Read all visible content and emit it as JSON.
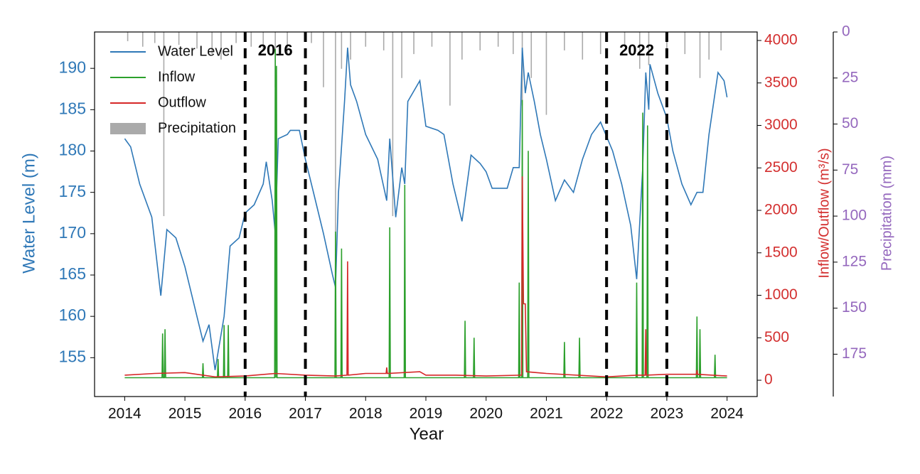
{
  "chart_data": {
    "type": "line",
    "xlabel": "Year",
    "ylabel": "Water Level (m)",
    "y2label": "Inflow/Outflow (m³/s)",
    "y3label": "Precipitation (mm)",
    "xlim": [
      2013.5,
      2024.5
    ],
    "xticks": [
      2014,
      2015,
      2016,
      2017,
      2018,
      2019,
      2020,
      2021,
      2022,
      2023,
      2024
    ],
    "ylim": [
      150.3,
      194.4
    ],
    "yticks": [
      155,
      160,
      165,
      170,
      175,
      180,
      185,
      190
    ],
    "y2lim": [
      -192,
      4100
    ],
    "y2ticks": [
      0,
      500,
      1000,
      1500,
      2000,
      2500,
      3000,
      3500,
      4000
    ],
    "y3lim": [
      0,
      198
    ],
    "y3_inverted": true,
    "y3ticks": [
      0,
      25,
      50,
      75,
      100,
      125,
      150,
      175
    ],
    "legend": "upper left",
    "annotations": [
      {
        "text": "2016",
        "x0": 2016,
        "x1": 2017
      },
      {
        "text": "2022",
        "x0": 2022,
        "x1": 2023
      }
    ],
    "series": [
      {
        "name": "Water Level",
        "color": "#2f78b7",
        "axis": "y",
        "x": [
          2014.0,
          2014.1,
          2014.25,
          2014.45,
          2014.6,
          2014.7,
          2014.85,
          2015.0,
          2015.2,
          2015.3,
          2015.4,
          2015.5,
          2015.65,
          2015.75,
          2015.9,
          2016.0,
          2016.15,
          2016.3,
          2016.35,
          2016.45,
          2016.5,
          2016.55,
          2016.7,
          2016.75,
          2016.9,
          2017.0,
          2017.15,
          2017.3,
          2017.45,
          2017.5,
          2017.55,
          2017.65,
          2017.7,
          2017.75,
          2017.85,
          2018.0,
          2018.2,
          2018.35,
          2018.4,
          2018.5,
          2018.6,
          2018.65,
          2018.7,
          2018.9,
          2019.0,
          2019.2,
          2019.3,
          2019.45,
          2019.6,
          2019.75,
          2019.9,
          2020.0,
          2020.1,
          2020.35,
          2020.45,
          2020.55,
          2020.6,
          2020.65,
          2020.7,
          2020.8,
          2020.9,
          2021.0,
          2021.15,
          2021.3,
          2021.45,
          2021.6,
          2021.75,
          2021.9,
          2022.1,
          2022.25,
          2022.4,
          2022.5,
          2022.6,
          2022.65,
          2022.7,
          2022.72,
          2022.85,
          2023.0,
          2023.1,
          2023.25,
          2023.4,
          2023.5,
          2023.6,
          2023.7,
          2023.85,
          2023.95,
          2024.0
        ],
        "values": [
          181.5,
          180.5,
          176,
          172,
          162.5,
          170.5,
          169.5,
          166,
          160,
          157,
          159,
          153.5,
          160,
          168.5,
          169.5,
          172.5,
          173.5,
          176,
          178.7,
          174,
          170,
          181.5,
          182,
          182.5,
          182.5,
          179,
          174.5,
          170,
          165,
          163.5,
          175,
          186,
          192.5,
          188,
          186,
          182,
          179,
          174,
          181.5,
          172,
          178,
          176,
          186,
          188.5,
          183,
          182.5,
          182,
          176,
          171.5,
          179.5,
          178.5,
          177.5,
          175.5,
          175.5,
          178,
          178,
          192.5,
          187,
          189.5,
          186,
          182,
          179,
          174,
          176.5,
          175,
          179,
          182,
          183.5,
          180,
          176,
          171,
          164.5,
          178,
          189.5,
          185,
          190.5,
          187,
          184,
          180,
          176,
          173.5,
          175,
          175,
          182,
          189.5,
          188.5,
          186.5
        ]
      },
      {
        "name": "Inflow",
        "color": "#2ca02c",
        "axis": "y2",
        "x": [
          2014.0,
          2014.62,
          2014.63,
          2014.64,
          2014.66,
          2014.67,
          2014.68,
          2015.29,
          2015.3,
          2015.31,
          2015.54,
          2015.55,
          2015.56,
          2015.64,
          2015.65,
          2015.66,
          2015.71,
          2015.72,
          2015.73,
          2016.49,
          2016.5,
          2016.51,
          2016.52,
          2016.53,
          2017.49,
          2017.5,
          2017.51,
          2017.59,
          2017.6,
          2017.61,
          2018.39,
          2018.4,
          2018.41,
          2018.64,
          2018.65,
          2018.66,
          2019.64,
          2019.65,
          2019.66,
          2019.79,
          2019.8,
          2019.81,
          2020.54,
          2020.55,
          2020.56,
          2020.59,
          2020.6,
          2020.61,
          2020.69,
          2020.7,
          2020.71,
          2021.29,
          2021.3,
          2021.31,
          2021.54,
          2021.55,
          2021.56,
          2022.49,
          2022.5,
          2022.51,
          2022.59,
          2022.6,
          2022.61,
          2022.67,
          2022.68,
          2022.69,
          2023.49,
          2023.5,
          2023.51,
          2023.54,
          2023.55,
          2023.56,
          2023.79,
          2023.8,
          2023.81,
          2024.0
        ],
        "values": [
          30,
          30,
          550,
          30,
          30,
          600,
          30,
          30,
          200,
          30,
          30,
          250,
          30,
          30,
          650,
          30,
          30,
          650,
          30,
          30,
          3900,
          30,
          3700,
          30,
          30,
          1750,
          30,
          30,
          1550,
          30,
          30,
          1800,
          30,
          30,
          2300,
          30,
          30,
          700,
          30,
          30,
          500,
          30,
          30,
          1150,
          30,
          30,
          3300,
          30,
          30,
          2700,
          30,
          30,
          450,
          30,
          30,
          500,
          30,
          30,
          1150,
          30,
          30,
          3150,
          30,
          30,
          3000,
          30,
          30,
          750,
          30,
          30,
          600,
          30,
          30,
          300,
          30,
          30
        ]
      },
      {
        "name": "Outflow",
        "color": "#d62728",
        "axis": "y2",
        "x": [
          2014.0,
          2014.5,
          2015.0,
          2015.5,
          2016.0,
          2016.5,
          2017.0,
          2017.5,
          2017.69,
          2017.7,
          2017.71,
          2018.0,
          2018.34,
          2018.35,
          2018.36,
          2018.9,
          2019.0,
          2019.5,
          2020.0,
          2020.59,
          2020.6,
          2020.62,
          2020.65,
          2020.67,
          2021.0,
          2022.0,
          2022.5,
          2022.64,
          2022.65,
          2022.66,
          2023.0,
          2023.49,
          2023.5,
          2023.51,
          2024.0
        ],
        "values": [
          60,
          80,
          90,
          40,
          50,
          80,
          60,
          50,
          60,
          1400,
          60,
          80,
          80,
          150,
          80,
          100,
          60,
          60,
          50,
          60,
          2400,
          900,
          900,
          100,
          80,
          40,
          60,
          60,
          600,
          60,
          70,
          70,
          120,
          70,
          50
        ]
      },
      {
        "name": "Precipitation",
        "color": "#aaaaaa",
        "axis": "y3",
        "kind": "bar",
        "x": [
          2014.05,
          2014.3,
          2014.5,
          2014.65,
          2014.9,
          2015.2,
          2015.45,
          2015.6,
          2015.85,
          2016.1,
          2016.3,
          2016.5,
          2016.7,
          2017.1,
          2017.3,
          2017.5,
          2017.6,
          2017.75,
          2018.0,
          2018.3,
          2018.45,
          2018.6,
          2018.8,
          2019.1,
          2019.4,
          2019.6,
          2019.9,
          2020.2,
          2020.45,
          2020.6,
          2020.75,
          2021.0,
          2021.3,
          2021.6,
          2021.9,
          2022.3,
          2022.55,
          2022.7,
          2023.0,
          2023.3,
          2023.55,
          2023.7,
          2023.9
        ],
        "values": [
          5,
          8,
          6,
          100,
          7,
          9,
          12,
          15,
          6,
          8,
          10,
          30,
          12,
          6,
          30,
          150,
          20,
          15,
          8,
          10,
          100,
          25,
          12,
          8,
          40,
          15,
          10,
          8,
          12,
          40,
          25,
          45,
          10,
          15,
          12,
          8,
          20,
          18,
          10,
          12,
          25,
          15,
          10
        ]
      }
    ]
  }
}
